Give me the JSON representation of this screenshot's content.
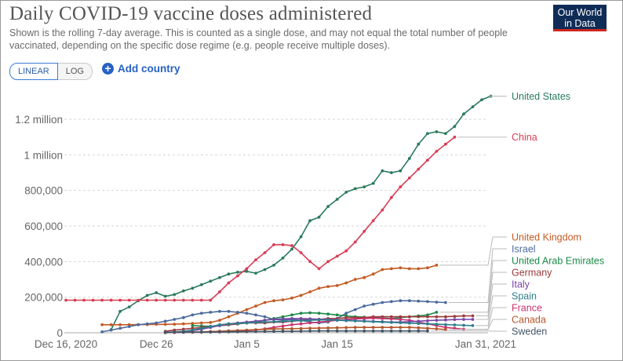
{
  "header": {
    "title": "Daily COVID-19 vaccine doses administered",
    "subtitle": "Shown is the rolling 7-day average. This is counted as a single dose, and may not equal the total number of people vaccinated, depending on the specific dose regime (e.g. people receive multiple doses).",
    "logo_line1": "Our World",
    "logo_line2": "in Data"
  },
  "controls": {
    "linear_label": "LINEAR",
    "log_label": "LOG",
    "add_country_label": "Add country",
    "active_scale": "linear"
  },
  "chart_data": {
    "type": "line",
    "title": "Daily COVID-19 vaccine doses administered",
    "xlabel": "",
    "ylabel": "",
    "xlim": [
      "2020-12-16",
      "2021-01-31"
    ],
    "ylim": [
      0,
      1350000
    ],
    "grid": "horizontal dashed",
    "yticks": [
      {
        "value": 0,
        "label": "0"
      },
      {
        "value": 200000,
        "label": "200,000"
      },
      {
        "value": 400000,
        "label": "400,000"
      },
      {
        "value": 600000,
        "label": "600,000"
      },
      {
        "value": 800000,
        "label": "800,000"
      },
      {
        "value": 1000000,
        "label": "1 million"
      },
      {
        "value": 1200000,
        "label": "1.2 million"
      }
    ],
    "xticks": [
      {
        "value": "2020-12-16",
        "label": "Dec 16, 2020"
      },
      {
        "value": "2020-12-26",
        "label": "Dec 26"
      },
      {
        "value": "2021-01-05",
        "label": "Jan 5"
      },
      {
        "value": "2021-01-15",
        "label": "Jan 15"
      },
      {
        "value": "2021-01-31",
        "label": "Jan 31, 2021"
      }
    ],
    "series": [
      {
        "name": "United States",
        "color": "#2b7b5c",
        "start": "2020-12-21",
        "values": [
          17000,
          120000,
          145000,
          180000,
          210000,
          225000,
          205000,
          215000,
          235000,
          250000,
          270000,
          290000,
          310000,
          330000,
          340000,
          345000,
          335000,
          355000,
          380000,
          420000,
          470000,
          540000,
          630000,
          650000,
          710000,
          750000,
          790000,
          810000,
          820000,
          840000,
          910000,
          900000,
          910000,
          980000,
          1060000,
          1120000,
          1130000,
          1120000,
          1160000,
          1230000,
          1270000,
          1310000,
          1330000
        ]
      },
      {
        "name": "China",
        "color": "#d73e56",
        "start": "2020-12-16",
        "values": [
          183000,
          183000,
          183000,
          183000,
          183000,
          183000,
          183000,
          183000,
          183000,
          183000,
          183000,
          183000,
          183000,
          183000,
          183000,
          183000,
          183000,
          230000,
          280000,
          320000,
          360000,
          410000,
          450000,
          495000,
          495000,
          490000,
          450000,
          400000,
          360000,
          400000,
          430000,
          460000,
          510000,
          570000,
          630000,
          690000,
          760000,
          820000,
          870000,
          920000,
          970000,
          1020000,
          1060000,
          1100000
        ]
      },
      {
        "name": "United Kingdom",
        "color": "#c45a22",
        "start": "2020-12-20",
        "values": [
          45000,
          45000,
          45000,
          45000,
          46000,
          46000,
          47000,
          47000,
          48000,
          50000,
          52000,
          55000,
          58000,
          70000,
          90000,
          110000,
          130000,
          150000,
          170000,
          180000,
          185000,
          195000,
          210000,
          230000,
          250000,
          260000,
          265000,
          280000,
          300000,
          310000,
          330000,
          355000,
          360000,
          365000,
          360000,
          360000,
          365000,
          380000
        ]
      },
      {
        "name": "Israel",
        "color": "#4c6a9c",
        "start": "2020-12-20",
        "values": [
          5000,
          15000,
          25000,
          35000,
          45000,
          50000,
          55000,
          65000,
          75000,
          85000,
          100000,
          110000,
          115000,
          120000,
          120000,
          115000,
          110000,
          100000,
          90000,
          75000,
          70000,
          75000,
          70000,
          60000,
          55000,
          60000,
          80000,
          110000,
          130000,
          150000,
          160000,
          170000,
          175000,
          180000,
          180000,
          178000,
          175000,
          172000,
          170000
        ]
      },
      {
        "name": "United Arab Emirates",
        "color": "#1c8a4a",
        "start": "2020-12-30",
        "values": [
          40000,
          38000,
          36000,
          40000,
          45000,
          50000,
          55000,
          60000,
          70000,
          80000,
          90000,
          100000,
          110000,
          112000,
          110000,
          105000,
          100000,
          95000,
          90000,
          88000,
          85000,
          83000,
          80000,
          85000,
          90000,
          95000,
          100000,
          115000
        ]
      },
      {
        "name": "Germany",
        "color": "#9b3a3a",
        "start": "2020-12-27",
        "values": [
          8000,
          15000,
          20000,
          25000,
          30000,
          35000,
          40000,
          45000,
          50000,
          55000,
          55000,
          55000,
          60000,
          60000,
          65000,
          70000,
          75000,
          75000,
          80000,
          80000,
          85000,
          85000,
          85000,
          90000,
          90000,
          90000,
          90000,
          90000,
          90000,
          90000,
          90000,
          90000,
          92000,
          95000,
          95000
        ]
      },
      {
        "name": "France",
        "color": "#c8336e",
        "start": "2020-12-27",
        "values": [
          1000,
          1500,
          2000,
          2500,
          3000,
          4000,
          5000,
          7000,
          9000,
          12000,
          16000,
          22000,
          30000,
          38000,
          45000,
          50000,
          55000,
          60000,
          65000,
          70000,
          75000,
          78000,
          80000,
          82000,
          80000,
          78000,
          75000,
          70000,
          60000,
          50000,
          40000,
          30000,
          25000,
          20000
        ]
      },
      {
        "name": "Italy",
        "color": "#7a44a8",
        "start": "2020-12-27",
        "values": [
          2000,
          5000,
          8000,
          12000,
          20000,
          30000,
          40000,
          50000,
          55000,
          60000,
          65000,
          70000,
          75000,
          78000,
          80000,
          80000,
          78000,
          76000,
          74000,
          72000,
          70000,
          68000,
          66000,
          64000,
          62000,
          60000,
          60000,
          62000,
          65000,
          68000,
          70000,
          72000,
          74000,
          75000,
          75000
        ]
      },
      {
        "name": "Spain",
        "color": "#2f7f8c",
        "start": "2020-12-27",
        "values": [
          2000,
          4000,
          8000,
          15000,
          25000,
          35000,
          45000,
          50000,
          52000,
          55000,
          58000,
          60000,
          62000,
          64000,
          66000,
          68000,
          70000,
          72000,
          72000,
          70000,
          68000,
          66000,
          64000,
          62000,
          60000,
          58000,
          56000,
          54000,
          52000,
          50000,
          48000,
          46000,
          44000,
          42000,
          40000
        ]
      },
      {
        "name": "Canada",
        "color": "#b5562a",
        "start": "2020-12-27",
        "values": [
          1000,
          2000,
          3000,
          4000,
          5000,
          7000,
          9000,
          11000,
          13000,
          15000,
          17000,
          19000,
          21000,
          22000,
          23000,
          24000,
          25000,
          26000,
          27000,
          28000,
          29000,
          30000,
          30000,
          30000,
          30000,
          30000,
          30000,
          30000,
          28000,
          25000,
          22000,
          18000
        ]
      },
      {
        "name": "Sweden",
        "color": "#445566",
        "start": "2020-12-27",
        "values": [
          1000,
          2000,
          2500,
          3000,
          3500,
          4000,
          4500,
          5000,
          5500,
          6000,
          6500,
          7000,
          7500,
          8000,
          8500,
          9000,
          9500,
          10000,
          10000,
          10000,
          10000,
          10000,
          10000,
          10000,
          10000,
          10000,
          10000,
          10000,
          10000,
          10000
        ]
      }
    ]
  }
}
